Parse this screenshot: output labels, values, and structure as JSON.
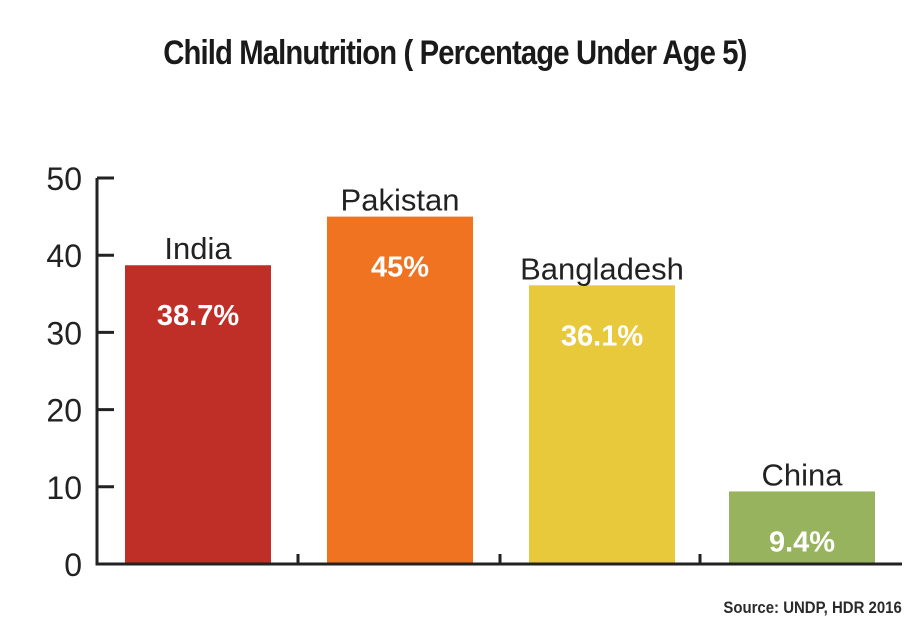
{
  "chart_data": {
    "type": "bar",
    "title": "Child Malnutrition ( Percentage Under Age 5)",
    "categories": [
      "India",
      "Pakistan",
      "Bangladesh",
      "China"
    ],
    "values": [
      38.7,
      45,
      36.1,
      9.4
    ],
    "value_labels": [
      "38.7%",
      "45%",
      "36.1%",
      "9.4%"
    ],
    "colors": [
      "#bf2f28",
      "#f07322",
      "#e8c93c",
      "#98b35e"
    ],
    "ylim": [
      0,
      50
    ],
    "yticks": [
      0,
      10,
      20,
      30,
      40,
      50
    ],
    "xlabel": "",
    "ylabel": "",
    "grid": false,
    "source": "Source: UNDP, HDR 2016"
  }
}
